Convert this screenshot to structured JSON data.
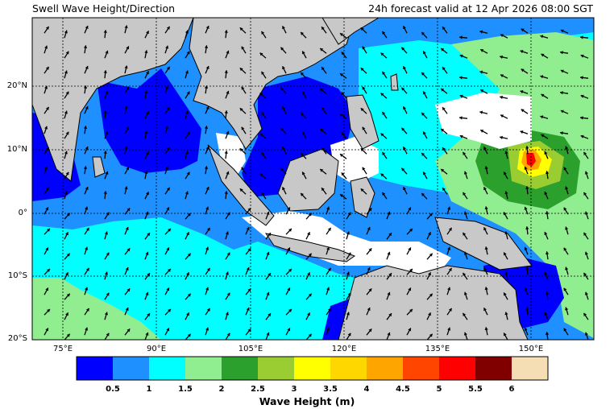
{
  "header": {
    "title": "Swell Wave Height/Direction",
    "valid_time": "24h forecast valid at 12 Apr 2026 08:00 SGT"
  },
  "map": {
    "latitude_labels": [
      "20°N",
      "10°N",
      "0°",
      "10°S",
      "20°S"
    ],
    "longitude_labels": [
      "75°E",
      "90°E",
      "105°E",
      "120°E",
      "135°E",
      "150°E"
    ],
    "land_color": "#c8c8c8",
    "calm_color": "#ffffff"
  },
  "colorbar": {
    "title": "Wave Height (m)",
    "ticks": [
      "0.5",
      "1",
      "1.5",
      "2",
      "2.5",
      "3",
      "3.5",
      "4",
      "4.5",
      "5",
      "5.5",
      "6"
    ],
    "colors": [
      "#0000ff",
      "#1e90ff",
      "#00ffff",
      "#90ee90",
      "#2ca02c",
      "#9acd32",
      "#ffff00",
      "#ffd700",
      "#ffa500",
      "#ff4500",
      "#ff0000",
      "#800000",
      "#f5deb3"
    ]
  }
}
